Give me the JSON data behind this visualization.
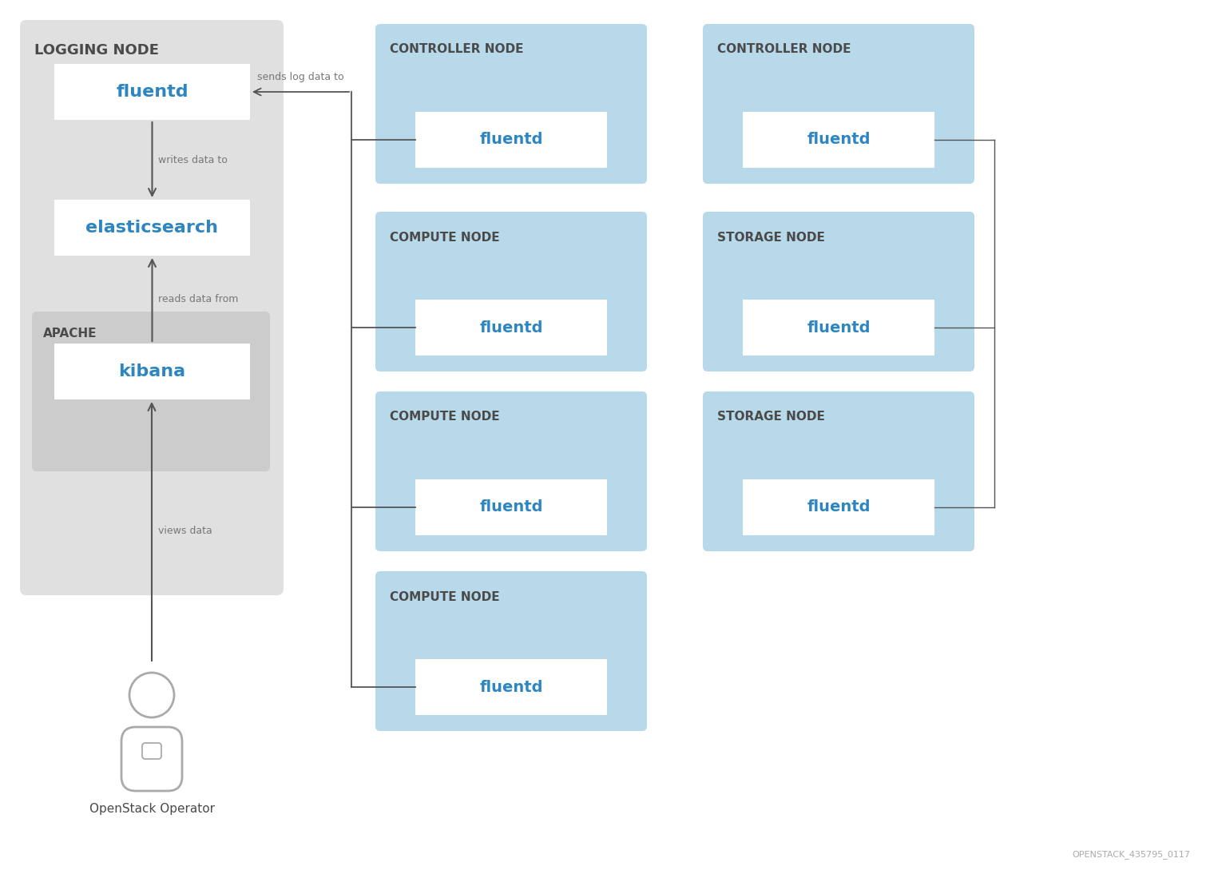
{
  "bg_color": "#ffffff",
  "logging_node_bg": "#e0e0e0",
  "apache_bg": "#cccccc",
  "node_bg": "#b8d9ea",
  "box_bg": "#ffffff",
  "blue_text": "#2e86c1",
  "dark_text": "#4a4a4a",
  "label_text": "#777777",
  "arrow_color": "#555555",
  "logging_node_label": "LOGGING NODE",
  "apache_label": "APACHE",
  "fluentd_label": "fluentd",
  "elasticsearch_label": "elasticsearch",
  "kibana_label": "kibana",
  "writes_data_to": "writes data to",
  "reads_data_from": "reads data from",
  "sends_log_data_to": "sends log data to",
  "views_data": "views data",
  "operator_label": "OpenStack Operator",
  "nodes": [
    {
      "label": "CONTROLLER NODE",
      "col": 0,
      "row": 0,
      "inner": "fluentd"
    },
    {
      "label": "CONTROLLER NODE",
      "col": 1,
      "row": 0,
      "inner": "fluentd"
    },
    {
      "label": "COMPUTE NODE",
      "col": 0,
      "row": 1,
      "inner": "fluentd"
    },
    {
      "label": "STORAGE NODE",
      "col": 1,
      "row": 1,
      "inner": "fluentd"
    },
    {
      "label": "COMPUTE NODE",
      "col": 0,
      "row": 2,
      "inner": "fluentd"
    },
    {
      "label": "STORAGE NODE",
      "col": 1,
      "row": 2,
      "inner": "fluentd"
    },
    {
      "label": "COMPUTE NODE",
      "col": 0,
      "row": 3,
      "inner": "fluentd"
    }
  ],
  "watermark": "OPENSTACK_435795_0117"
}
